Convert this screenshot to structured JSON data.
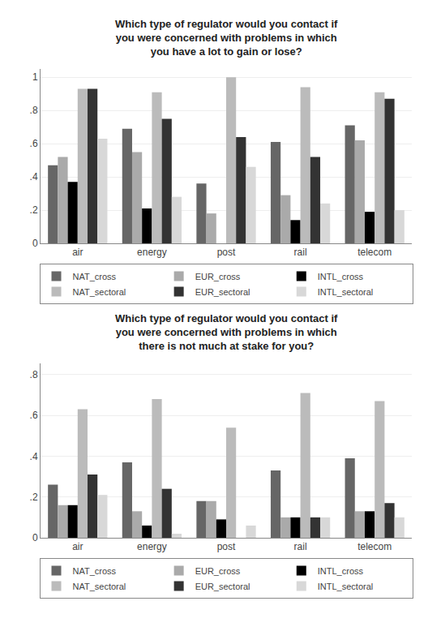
{
  "chart_data": [
    {
      "type": "bar",
      "title": "Which type of regulator would you contact if\nyou were concerned with problems in which\nyou have a lot to gain or lose?",
      "categories": [
        "air",
        "energy",
        "post",
        "rail",
        "telecom"
      ],
      "series": [
        {
          "name": "NAT_cross",
          "color": "#666666",
          "values": [
            0.47,
            0.69,
            0.36,
            0.61,
            0.71
          ]
        },
        {
          "name": "EUR_cross",
          "color": "#aaaaaa",
          "values": [
            0.52,
            0.55,
            0.18,
            0.29,
            0.62
          ]
        },
        {
          "name": "INTL_cross",
          "color": "#000000",
          "values": [
            0.37,
            0.21,
            0.0,
            0.14,
            0.19
          ]
        },
        {
          "name": "NAT_sectoral",
          "color": "#bbbbbb",
          "values": [
            0.93,
            0.91,
            1.0,
            0.94,
            0.91
          ]
        },
        {
          "name": "EUR_sectoral",
          "color": "#333333",
          "values": [
            0.93,
            0.75,
            0.64,
            0.52,
            0.87
          ]
        },
        {
          "name": "INTL_sectoral",
          "color": "#d8d8d8",
          "values": [
            0.63,
            0.28,
            0.46,
            0.24,
            0.2
          ]
        }
      ],
      "ylim": [
        0,
        1.05
      ],
      "yticks": [
        0,
        {
          "value": 0.2,
          "label": ".2"
        },
        {
          "value": 0.4,
          "label": ".4"
        },
        {
          "value": 0.6,
          "label": ".6"
        },
        {
          "value": 0.8,
          "label": ".8"
        },
        1
      ],
      "grid": true,
      "legend": "bottom"
    },
    {
      "type": "bar",
      "title": "Which type of regulator would you contact if\nyou were concerned with problems in which\nthere is not much at stake for you?",
      "categories": [
        "air",
        "energy",
        "post",
        "rail",
        "telecom"
      ],
      "series": [
        {
          "name": "NAT_cross",
          "color": "#666666",
          "values": [
            0.26,
            0.37,
            0.18,
            0.33,
            0.39
          ]
        },
        {
          "name": "EUR_cross",
          "color": "#aaaaaa",
          "values": [
            0.16,
            0.13,
            0.18,
            0.1,
            0.13
          ]
        },
        {
          "name": "INTL_cross",
          "color": "#000000",
          "values": [
            0.16,
            0.06,
            0.09,
            0.1,
            0.13
          ]
        },
        {
          "name": "NAT_sectoral",
          "color": "#bbbbbb",
          "values": [
            0.63,
            0.68,
            0.54,
            0.71,
            0.67
          ]
        },
        {
          "name": "EUR_sectoral",
          "color": "#333333",
          "values": [
            0.31,
            0.24,
            0.0,
            0.1,
            0.17
          ]
        },
        {
          "name": "INTL_sectoral",
          "color": "#d8d8d8",
          "values": [
            0.21,
            0.02,
            0.06,
            0.1,
            0.1
          ]
        }
      ],
      "ylim": [
        0,
        0.855
      ],
      "yticks": [
        0,
        {
          "value": 0.2,
          "label": ".2"
        },
        {
          "value": 0.4,
          "label": ".4"
        },
        {
          "value": 0.6,
          "label": ".6"
        },
        {
          "value": 0.8,
          "label": ".8"
        }
      ],
      "grid": true,
      "legend": "bottom"
    }
  ]
}
